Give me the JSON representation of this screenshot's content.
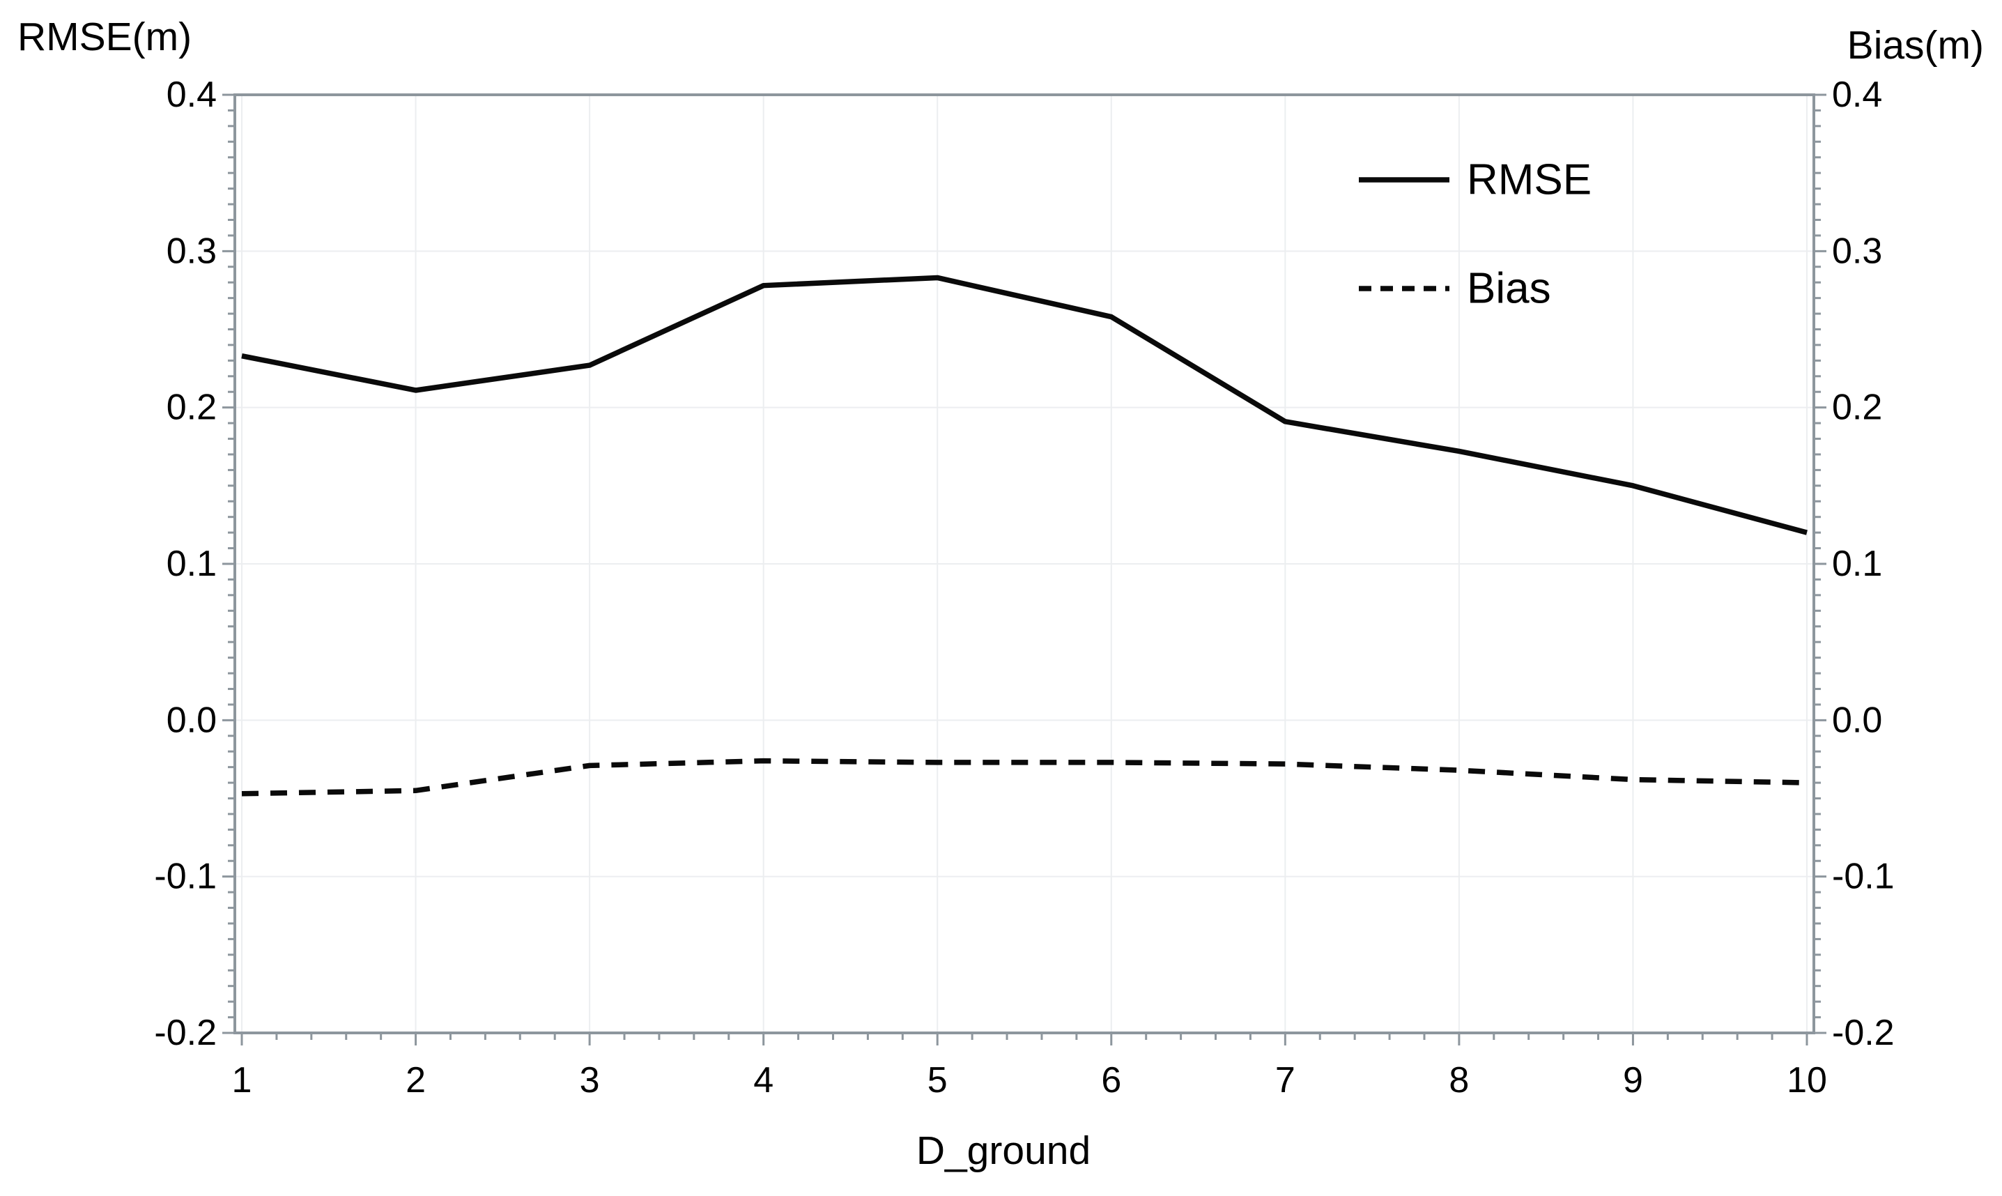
{
  "chart_data": {
    "type": "line",
    "title": "",
    "xlabel": "D_ground",
    "ylabel_left": "RMSE(m)",
    "ylabel_right": "Bias(m)",
    "x": [
      1,
      2,
      3,
      4,
      5,
      6,
      7,
      8,
      9,
      10
    ],
    "series": [
      {
        "name": "RMSE",
        "style": "solid",
        "axis": "left",
        "values": [
          0.233,
          0.211,
          0.227,
          0.278,
          0.283,
          0.258,
          0.191,
          0.172,
          0.15,
          0.12
        ]
      },
      {
        "name": "Bias",
        "style": "dashed",
        "axis": "right",
        "values": [
          -0.047,
          -0.045,
          -0.029,
          -0.026,
          -0.027,
          -0.027,
          -0.028,
          -0.032,
          -0.038,
          -0.04
        ]
      }
    ],
    "ylim": [
      -0.2,
      0.4
    ],
    "y_major_values": [
      0.4,
      0.3,
      0.2,
      0.1,
      0.0,
      -0.1,
      -0.2
    ],
    "y_major_tick_labels": [
      "0.4",
      "0.3",
      "0.2",
      "0.1",
      "0.0",
      "-0.1",
      "-0.2"
    ],
    "y_minor_step": 0.01,
    "x_tick_labels": [
      "1",
      "2",
      "3",
      "4",
      "5",
      "6",
      "7",
      "8",
      "9",
      "10"
    ],
    "x_minor_step": 0.2,
    "grid": true,
    "legend": {
      "position": "inside-top-right",
      "entries": [
        "RMSE",
        "Bias"
      ]
    },
    "colors": {
      "line": "#0a0a0a",
      "frame": "#8d969d",
      "grid": "#eceef0",
      "text": "#000000",
      "background": "#ffffff"
    }
  }
}
